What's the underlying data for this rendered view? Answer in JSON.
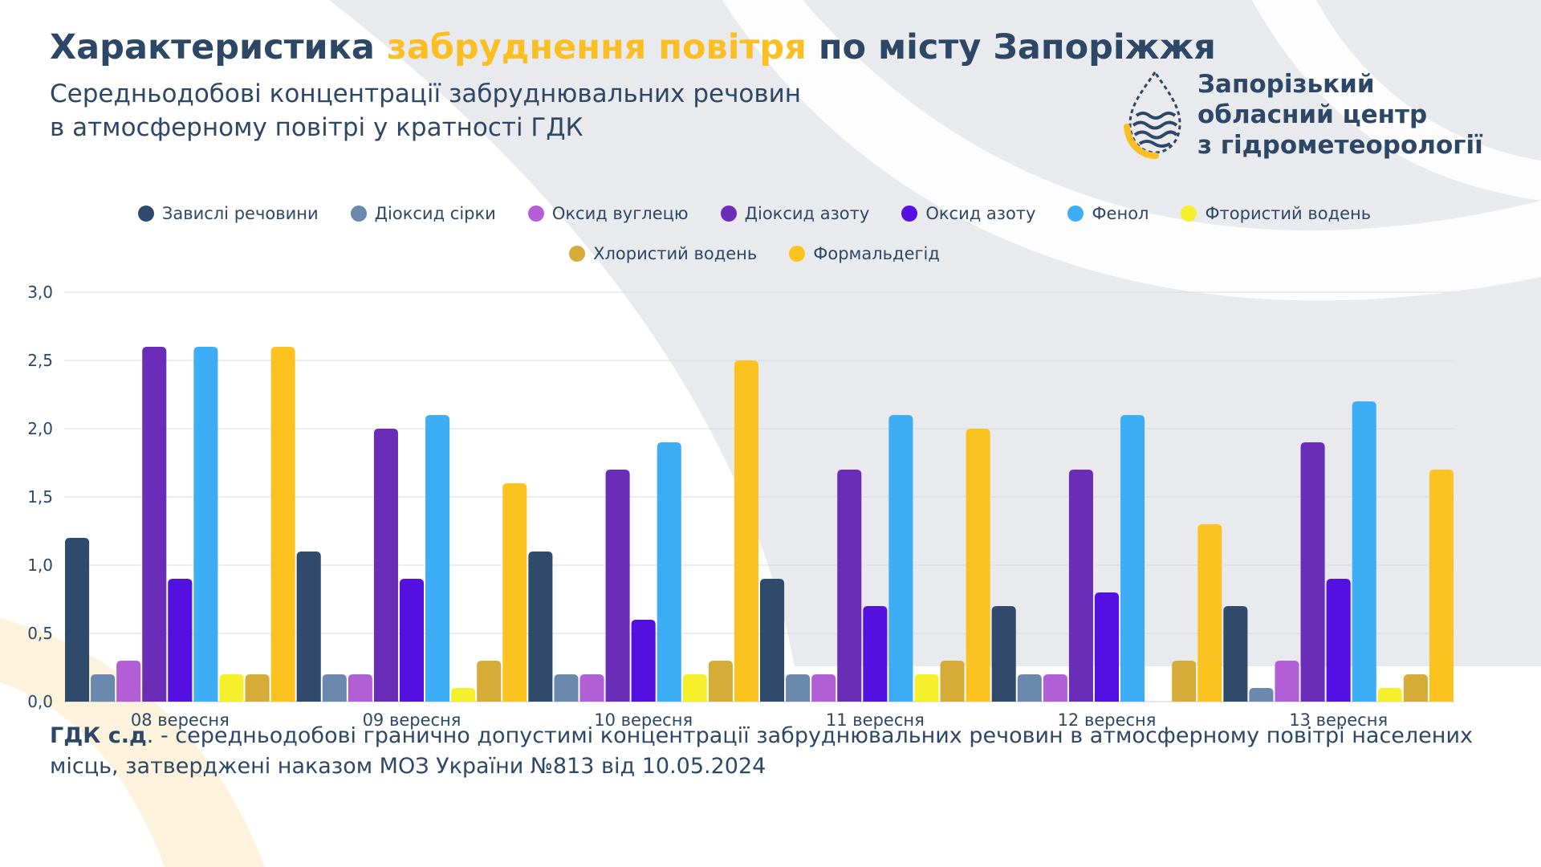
{
  "header": {
    "title_part1": "Характеристика",
    "title_highlight": "забруднення повітря",
    "title_part2": "по місту Запоріжжя",
    "subtitle_line1": "Середньодобові концентрації забруднювальних речовин",
    "subtitle_line2": "в атмосферному повітрі у кратності ГДК"
  },
  "org": {
    "line1": "Запорізький",
    "line2": "обласний центр",
    "line3": "з гідрометеорології",
    "logo_icon": "drop-waves-logo"
  },
  "colors": {
    "primary": "#2d4766",
    "accent": "#fbbf24"
  },
  "chart_data": {
    "type": "bar",
    "categories": [
      "08 вересня",
      "09 вересня",
      "10 вересня",
      "11 вересня",
      "12 вересня",
      "13 вересня"
    ],
    "ylim": [
      0,
      3
    ],
    "yticks": [
      "0,0",
      "0,5",
      "1,0",
      "1,5",
      "2,0",
      "2,5",
      "3,0"
    ],
    "grid": true,
    "legend_position": "top",
    "series": [
      {
        "name": "Завислі речовини",
        "color": "#2f4a6b",
        "values": [
          1.2,
          1.1,
          1.1,
          0.9,
          0.7,
          0.7
        ]
      },
      {
        "name": "Діоксид сірки",
        "color": "#6b88ad",
        "values": [
          0.2,
          0.2,
          0.2,
          0.2,
          0.2,
          0.1
        ]
      },
      {
        "name": "Оксид вуглецю",
        "color": "#b25fd6",
        "values": [
          0.3,
          0.2,
          0.2,
          0.2,
          0.2,
          0.3
        ]
      },
      {
        "name": "Діоксид азоту",
        "color": "#6a2db8",
        "values": [
          2.6,
          2.0,
          1.7,
          1.7,
          1.7,
          1.9
        ]
      },
      {
        "name": "Оксид азоту",
        "color": "#5310e0",
        "values": [
          0.9,
          0.9,
          0.6,
          0.7,
          0.8,
          0.9
        ]
      },
      {
        "name": "Фенол",
        "color": "#3daef5",
        "values": [
          2.6,
          2.1,
          1.9,
          2.1,
          2.1,
          2.2
        ]
      },
      {
        "name": "Фтористий водень",
        "color": "#f5ef2c",
        "values": [
          0.2,
          0.1,
          0.2,
          0.2,
          0.0,
          0.1
        ]
      },
      {
        "name": "Хлористий водень",
        "color": "#d4ac37",
        "values": [
          0.2,
          0.3,
          0.3,
          0.3,
          0.3,
          0.2
        ]
      },
      {
        "name": "Формальдегід",
        "color": "#fcc21f",
        "values": [
          2.6,
          1.6,
          2.5,
          2.0,
          1.3,
          1.7
        ]
      }
    ]
  },
  "footnote": {
    "bold": "ГДК с.д",
    "text": ". - середньодобові гранично допустимі концентрації забруднювальних речовин в атмосферному повітрі населених місць, затверджені наказом МОЗ України №813 від 10.05.2024"
  }
}
